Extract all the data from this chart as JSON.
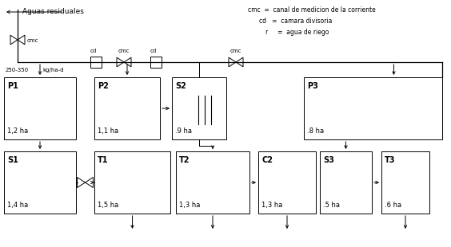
{
  "legend": {
    "cmc": "canal de medicion de la corriente",
    "cd": "camara divisoria",
    "r": "agua de riego"
  },
  "bg_color": "#ffffff",
  "line_color": "#000000",
  "font_size": 6.5
}
